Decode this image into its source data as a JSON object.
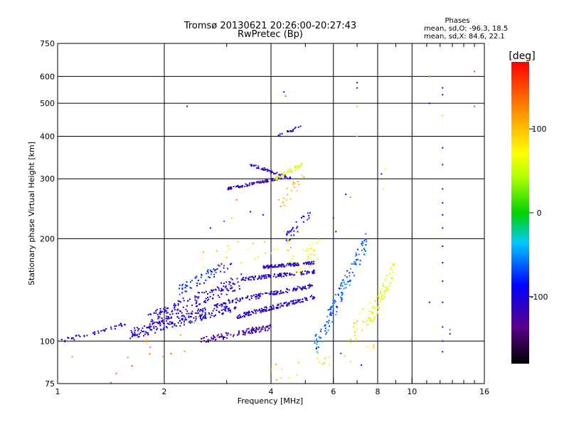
{
  "chart_data": {
    "type": "scatter",
    "title": "Tromsø 20130621 20:26:00-20:27:43",
    "subtitle": "RwPretec (Bp)",
    "xlabel": "Frequency [MHz]",
    "ylabel": "Stationary phase Virtual Height [km]",
    "x_scale": "log",
    "y_scale": "log",
    "xlim": [
      1,
      16
    ],
    "ylim": [
      75,
      750
    ],
    "x_ticks": [
      1,
      2,
      4,
      6,
      8,
      10,
      16
    ],
    "x_grid": [
      2,
      4,
      6,
      8,
      10
    ],
    "x_minor_ticks": [
      3,
      5,
      7,
      9,
      11,
      12,
      13,
      14,
      15
    ],
    "y_ticks": [
      75,
      100,
      200,
      300,
      400,
      500,
      600,
      750
    ],
    "grid": true,
    "phases_header": "Phases",
    "phases_O": "mean, sd,O: -96.3, 18.5",
    "phases_X": "mean, sd,X:  84.6, 22.1",
    "colorbar": {
      "label": "[deg]",
      "ticks": [
        100,
        0,
        -100
      ],
      "range": [
        -180,
        180
      ]
    },
    "traces": [
      {
        "x": [
          1.02,
          1.6
        ],
        "y": [
          100,
          113
        ],
        "phase": -100,
        "n": 40,
        "spread": 0.015
      },
      {
        "x": [
          1.6,
          3.2
        ],
        "y": [
          105,
          128
        ],
        "phase": -100,
        "n": 220,
        "spread": 0.04
      },
      {
        "x": [
          1.8,
          3.3
        ],
        "y": [
          115,
          150
        ],
        "phase": -110,
        "n": 160,
        "spread": 0.05
      },
      {
        "x": [
          2.2,
          3.1
        ],
        "y": [
          140,
          170
        ],
        "phase": -80,
        "n": 60,
        "spread": 0.04
      },
      {
        "x": [
          2.5,
          4.0
        ],
        "y": [
          100,
          110
        ],
        "phase": -125,
        "n": 110,
        "spread": 0.02
      },
      {
        "x": [
          3.2,
          5.3
        ],
        "y": [
          118,
          135
        ],
        "phase": -110,
        "n": 140,
        "spread": 0.015
      },
      {
        "x": [
          3.0,
          5.3
        ],
        "y": [
          130,
          146
        ],
        "phase": -110,
        "n": 110,
        "spread": 0.015
      },
      {
        "x": [
          3.3,
          5.3
        ],
        "y": [
          152,
          160
        ],
        "phase": -110,
        "n": 110,
        "spread": 0.012
      },
      {
        "x": [
          3.8,
          5.3
        ],
        "y": [
          165,
          170
        ],
        "phase": -110,
        "n": 100,
        "spread": 0.01
      },
      {
        "x": [
          3.0,
          4.3
        ],
        "y": [
          280,
          302
        ],
        "phase": -120,
        "n": 90,
        "spread": 0.008
      },
      {
        "x": [
          3.5,
          4.6
        ],
        "y": [
          330,
          300
        ],
        "phase": -100,
        "n": 50,
        "spread": 0.01
      },
      {
        "x": [
          4.1,
          4.9
        ],
        "y": [
          300,
          330
        ],
        "phase": 60,
        "n": 40,
        "spread": 0.015
      },
      {
        "x": [
          4.2,
          4.9
        ],
        "y": [
          400,
          430
        ],
        "phase": -105,
        "n": 18,
        "spread": 0.01
      },
      {
        "x": [
          4.4,
          5.2
        ],
        "y": [
          200,
          240
        ],
        "phase": -95,
        "n": 30,
        "spread": 0.04
      },
      {
        "x": [
          4.5,
          5.5
        ],
        "y": [
          160,
          190
        ],
        "phase": 70,
        "n": 30,
        "spread": 0.08
      },
      {
        "x": [
          5.3,
          7.5
        ],
        "y": [
          95,
          200
        ],
        "phase": -60,
        "n": 130,
        "spread": 0.07
      },
      {
        "x": [
          7.5,
          9.0
        ],
        "y": [
          110,
          170
        ],
        "phase": 60,
        "n": 60,
        "spread": 0.06
      },
      {
        "x": [
          6.5,
          8.0
        ],
        "y": [
          100,
          130
        ],
        "phase": 80,
        "n": 25,
        "spread": 0.08
      },
      {
        "x": [
          1.3,
          2.6
        ],
        "y": [
          78,
          110
        ],
        "phase": 130,
        "n": 15,
        "spread": 0.1
      },
      {
        "x": [
          4.0,
          8.0
        ],
        "y": [
          78,
          100
        ],
        "phase": 95,
        "n": 25,
        "spread": 0.08
      },
      {
        "x": [
          2.4,
          4.6
        ],
        "y": [
          170,
          200
        ],
        "phase": 90,
        "n": 25,
        "spread": 0.08
      },
      {
        "x": [
          4.2,
          5.0
        ],
        "y": [
          250,
          310
        ],
        "phase": 100,
        "n": 20,
        "spread": 0.05
      }
    ],
    "scatter_points": [
      {
        "x": 12.2,
        "y": 555,
        "phase": -110
      },
      {
        "x": 12.2,
        "y": 530,
        "phase": -110
      },
      {
        "x": 12.2,
        "y": 460,
        "phase": 40
      },
      {
        "x": 12.2,
        "y": 370,
        "phase": -110
      },
      {
        "x": 12.2,
        "y": 330,
        "phase": -110
      },
      {
        "x": 12.2,
        "y": 280,
        "phase": -110
      },
      {
        "x": 12.2,
        "y": 255,
        "phase": -110
      },
      {
        "x": 12.2,
        "y": 235,
        "phase": -100
      },
      {
        "x": 12.2,
        "y": 215,
        "phase": -120
      },
      {
        "x": 12.2,
        "y": 190,
        "phase": -110
      },
      {
        "x": 12.2,
        "y": 170,
        "phase": -110
      },
      {
        "x": 12.2,
        "y": 150,
        "phase": -120
      },
      {
        "x": 12.2,
        "y": 130,
        "phase": -110
      },
      {
        "x": 12.2,
        "y": 110,
        "phase": -120
      },
      {
        "x": 12.2,
        "y": 100,
        "phase": -100
      },
      {
        "x": 12.2,
        "y": 93,
        "phase": -110
      },
      {
        "x": 11.2,
        "y": 500,
        "phase": -100
      },
      {
        "x": 11.2,
        "y": 130,
        "phase": -110
      },
      {
        "x": 11.2,
        "y": 600,
        "phase": 130
      },
      {
        "x": 12.8,
        "y": 108,
        "phase": 150
      },
      {
        "x": 12.8,
        "y": 105,
        "phase": -110
      },
      {
        "x": 15.0,
        "y": 620,
        "phase": 150
      },
      {
        "x": 15.0,
        "y": 490,
        "phase": 150
      },
      {
        "x": 7.0,
        "y": 575,
        "phase": -110
      },
      {
        "x": 7.0,
        "y": 555,
        "phase": -130
      },
      {
        "x": 4.35,
        "y": 540,
        "phase": -110
      },
      {
        "x": 4.4,
        "y": 525,
        "phase": 140
      },
      {
        "x": 2.32,
        "y": 490,
        "phase": -110
      },
      {
        "x": 7.0,
        "y": 490,
        "phase": 100
      },
      {
        "x": 7.0,
        "y": 400,
        "phase": 100
      },
      {
        "x": 6.5,
        "y": 270,
        "phase": -110
      },
      {
        "x": 6.7,
        "y": 265,
        "phase": 20
      },
      {
        "x": 6.0,
        "y": 230,
        "phase": -120
      },
      {
        "x": 6.1,
        "y": 210,
        "phase": -110
      },
      {
        "x": 8.4,
        "y": 320,
        "phase": 70
      },
      {
        "x": 8.2,
        "y": 310,
        "phase": -100
      },
      {
        "x": 8.3,
        "y": 280,
        "phase": 60
      },
      {
        "x": 2.95,
        "y": 225,
        "phase": -60
      },
      {
        "x": 3.1,
        "y": 230,
        "phase": 40
      },
      {
        "x": 3.5,
        "y": 240,
        "phase": -90
      },
      {
        "x": 3.8,
        "y": 235,
        "phase": -110
      },
      {
        "x": 2.7,
        "y": 215,
        "phase": -100
      },
      {
        "x": 3.2,
        "y": 260,
        "phase": 140
      },
      {
        "x": 7.2,
        "y": 85,
        "phase": -100
      },
      {
        "x": 6.3,
        "y": 92,
        "phase": -110
      },
      {
        "x": 1.1,
        "y": 90,
        "phase": 120
      }
    ]
  }
}
